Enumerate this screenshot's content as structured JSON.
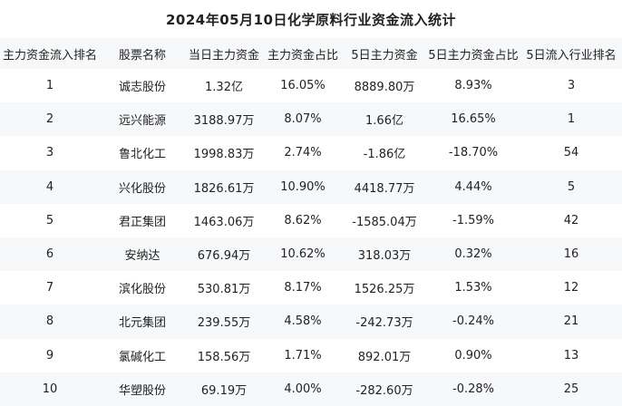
{
  "colors": {
    "background": "#ffffff",
    "row_alt_background": "#f7f8fa",
    "header_background": "#f7f8fa",
    "text": "#222222"
  },
  "chart_data": {
    "type": "table",
    "title": "2024年05月10日化学原料行业资金流入统计",
    "columns": [
      "主力资金流入排名",
      "股票名称",
      "当日主力资金",
      "主力资金占比",
      "5日主力资金",
      "5日主力资金占比",
      "5日流入行业排名"
    ],
    "rows": [
      [
        "1",
        "诚志股份",
        "1.32亿",
        "16.05%",
        "8889.80万",
        "8.93%",
        "3"
      ],
      [
        "2",
        "远兴能源",
        "3188.97万",
        "8.07%",
        "1.66亿",
        "16.65%",
        "1"
      ],
      [
        "3",
        "鲁北化工",
        "1998.83万",
        "2.74%",
        "-1.86亿",
        "-18.70%",
        "54"
      ],
      [
        "4",
        "兴化股份",
        "1826.61万",
        "10.90%",
        "4418.77万",
        "4.44%",
        "5"
      ],
      [
        "5",
        "君正集团",
        "1463.06万",
        "8.62%",
        "-1585.04万",
        "-1.59%",
        "42"
      ],
      [
        "6",
        "安纳达",
        "676.94万",
        "10.62%",
        "318.03万",
        "0.32%",
        "16"
      ],
      [
        "7",
        "滨化股份",
        "530.81万",
        "8.17%",
        "1526.25万",
        "1.53%",
        "12"
      ],
      [
        "8",
        "北元集团",
        "239.55万",
        "4.58%",
        "-242.73万",
        "-0.24%",
        "21"
      ],
      [
        "9",
        "氯碱化工",
        "158.56万",
        "1.71%",
        "892.01万",
        "0.90%",
        "13"
      ],
      [
        "10",
        "华塑股份",
        "69.19万",
        "4.00%",
        "-282.60万",
        "-0.28%",
        "25"
      ]
    ],
    "layout": {
      "grid": false,
      "row_striping": true,
      "column_alignment": "center"
    }
  }
}
